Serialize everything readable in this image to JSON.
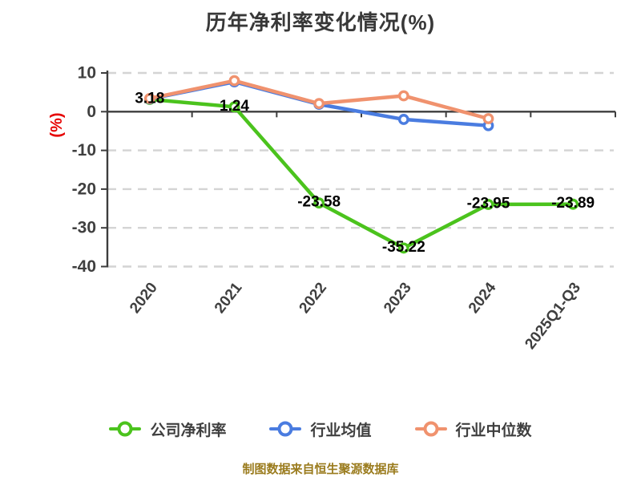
{
  "title": "历年净利率变化情况(%)",
  "y_axis_label": "(%)",
  "footer": "制图数据来自恒生聚源数据库",
  "colors": {
    "title": "#383838",
    "axis": "#3d3d3d",
    "grid": "#d4d4d4",
    "tick_text": "#3f3f3f",
    "data_label": "#000000",
    "unit_label": "#e60000",
    "footer_text": "#9a7b1d",
    "series_green": "#4bc31d",
    "series_blue": "#4a7ce0",
    "series_orange": "#f0926e",
    "marker_fill": "#ffffff"
  },
  "chart_data": {
    "type": "line",
    "categories": [
      "2020",
      "2021",
      "2022",
      "2023",
      "2024",
      "2025Q1-Q3"
    ],
    "series": [
      {
        "name": "公司净利率",
        "color": "#4bc31d",
        "values": [
          3.18,
          1.24,
          -23.58,
          -35.22,
          -23.95,
          -23.89
        ],
        "labels": [
          "3.18",
          "1.24",
          "-23.58",
          "-35.22",
          "-23.95",
          "-23.89"
        ]
      },
      {
        "name": "行业均值",
        "color": "#4a7ce0",
        "values": [
          3.3,
          7.7,
          1.9,
          -2.0,
          -3.6,
          null
        ]
      },
      {
        "name": "行业中位数",
        "color": "#f0926e",
        "values": [
          3.4,
          8.0,
          2.1,
          4.1,
          -1.8,
          null
        ]
      }
    ],
    "ylim": [
      -40,
      10
    ],
    "yticks": [
      10,
      0,
      -10,
      -20,
      -30,
      -40
    ],
    "grid": "horizontal dashed, solid line at 0",
    "legend_position": "bottom",
    "x_tick_rotation": -52
  }
}
